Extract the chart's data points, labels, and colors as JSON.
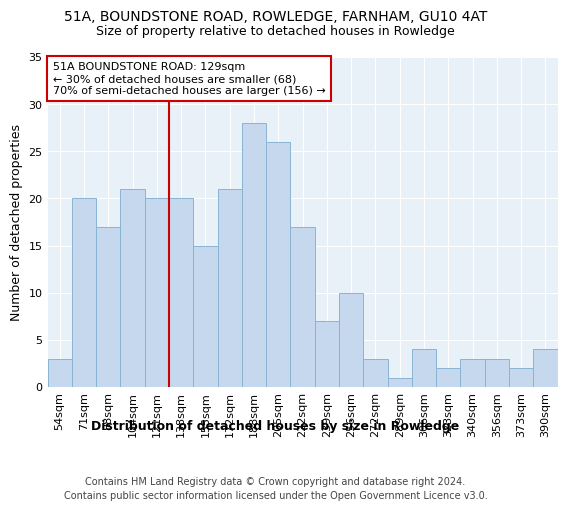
{
  "title": "51A, BOUNDSTONE ROAD, ROWLEDGE, FARNHAM, GU10 4AT",
  "subtitle": "Size of property relative to detached houses in Rowledge",
  "xlabel": "Distribution of detached houses by size in Rowledge",
  "ylabel": "Number of detached properties",
  "categories": [
    "54sqm",
    "71sqm",
    "88sqm",
    "104sqm",
    "121sqm",
    "138sqm",
    "155sqm",
    "172sqm",
    "188sqm",
    "205sqm",
    "222sqm",
    "239sqm",
    "256sqm",
    "272sqm",
    "289sqm",
    "306sqm",
    "323sqm",
    "340sqm",
    "356sqm",
    "373sqm",
    "390sqm"
  ],
  "values": [
    3,
    20,
    17,
    21,
    20,
    20,
    15,
    21,
    28,
    26,
    17,
    7,
    10,
    3,
    1,
    4,
    2,
    3,
    3,
    2,
    4
  ],
  "bar_color": "#c5d8ed",
  "bar_edge_color": "#8ab4d4",
  "ref_line_x": 4.5,
  "ref_line_color": "#cc0000",
  "annotation_text": "51A BOUNDSTONE ROAD: 129sqm\n← 30% of detached houses are smaller (68)\n70% of semi-detached houses are larger (156) →",
  "annotation_box_color": "#ffffff",
  "annotation_box_edge_color": "#cc0000",
  "ylim": [
    0,
    35
  ],
  "yticks": [
    0,
    5,
    10,
    15,
    20,
    25,
    30,
    35
  ],
  "background_color": "#e8f0f8",
  "grid_color": "#ffffff",
  "title_fontsize": 10,
  "subtitle_fontsize": 9,
  "axis_label_fontsize": 9,
  "tick_fontsize": 8,
  "annotation_fontsize": 8,
  "footer_fontsize": 7,
  "footer_text": "Contains HM Land Registry data © Crown copyright and database right 2024.\nContains public sector information licensed under the Open Government Licence v3.0."
}
